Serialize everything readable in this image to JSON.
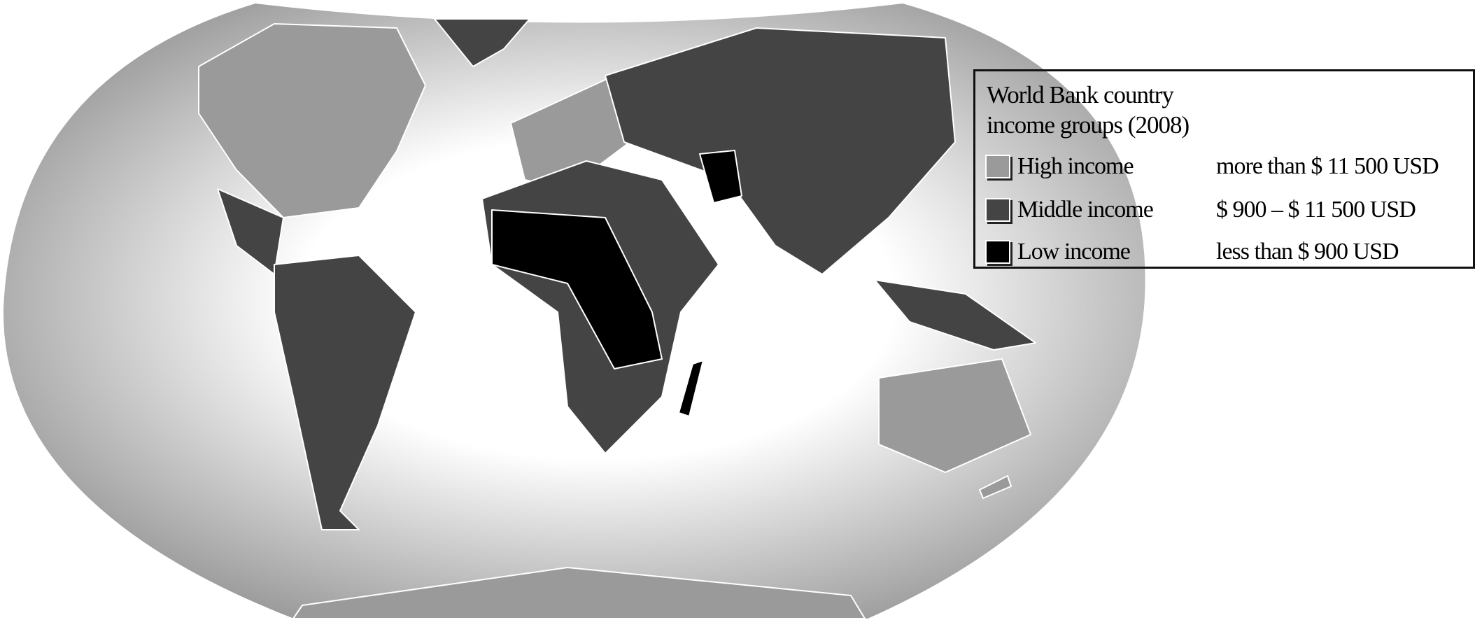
{
  "legend": {
    "title_line1": "World Bank country",
    "title_line2": "income groups (2008)",
    "items": [
      {
        "label": "High income",
        "range": "more than $ 11 500 USD",
        "color": "#9a9a9a"
      },
      {
        "label": "Middle income",
        "range": "$ 900 – $ 11 500 USD",
        "color": "#444444"
      },
      {
        "label": "Low income",
        "range": "less than $ 900 USD",
        "color": "#000000"
      }
    ]
  },
  "colors": {
    "high": "#9a9a9a",
    "middle": "#444444",
    "low": "#000000",
    "ocean_center": "#ffffff",
    "ocean_edge": "#9c9c9c"
  }
}
